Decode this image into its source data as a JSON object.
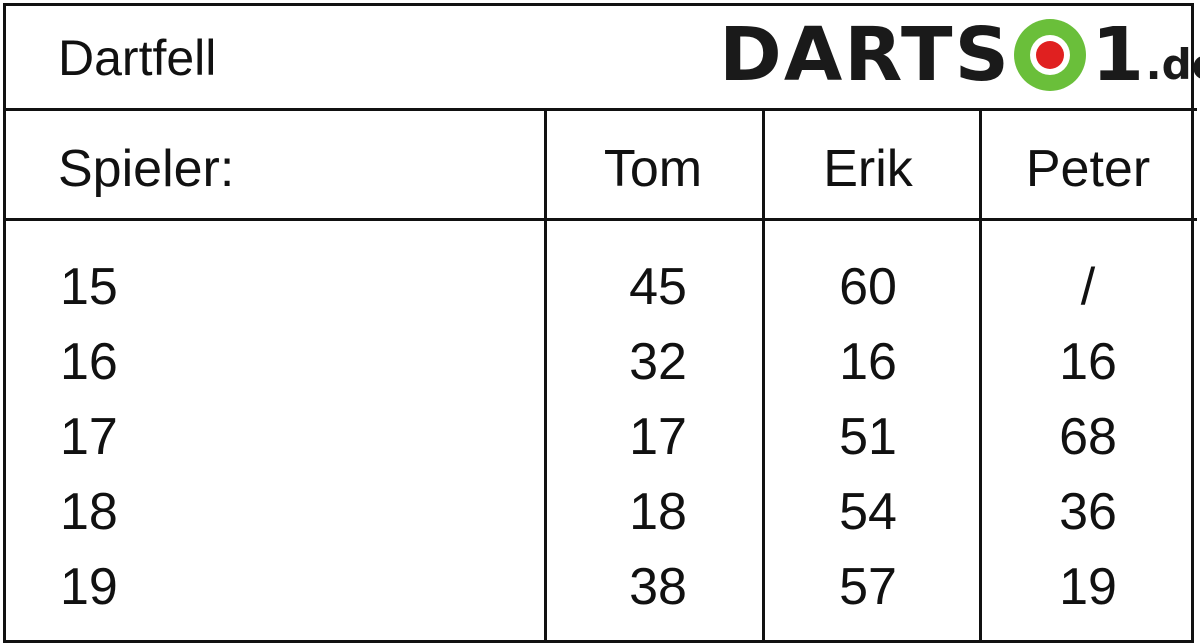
{
  "title": "Dartfell",
  "logo": {
    "text_left": "DARTS",
    "text_right": "1",
    "suffix": ".de",
    "ring_color": "#6abf3a",
    "center_color": "#e02020"
  },
  "table": {
    "header_label": "Spieler:",
    "players": [
      "Tom",
      "Erik",
      "Peter"
    ],
    "rows": [
      {
        "label": "15",
        "values": [
          "45",
          "60",
          "/"
        ]
      },
      {
        "label": "16",
        "values": [
          "32",
          "16",
          "16"
        ]
      },
      {
        "label": "17",
        "values": [
          "17",
          "51",
          "68"
        ]
      },
      {
        "label": "18",
        "values": [
          "18",
          "54",
          "36"
        ]
      },
      {
        "label": "19",
        "values": [
          "38",
          "57",
          "19"
        ]
      }
    ]
  }
}
